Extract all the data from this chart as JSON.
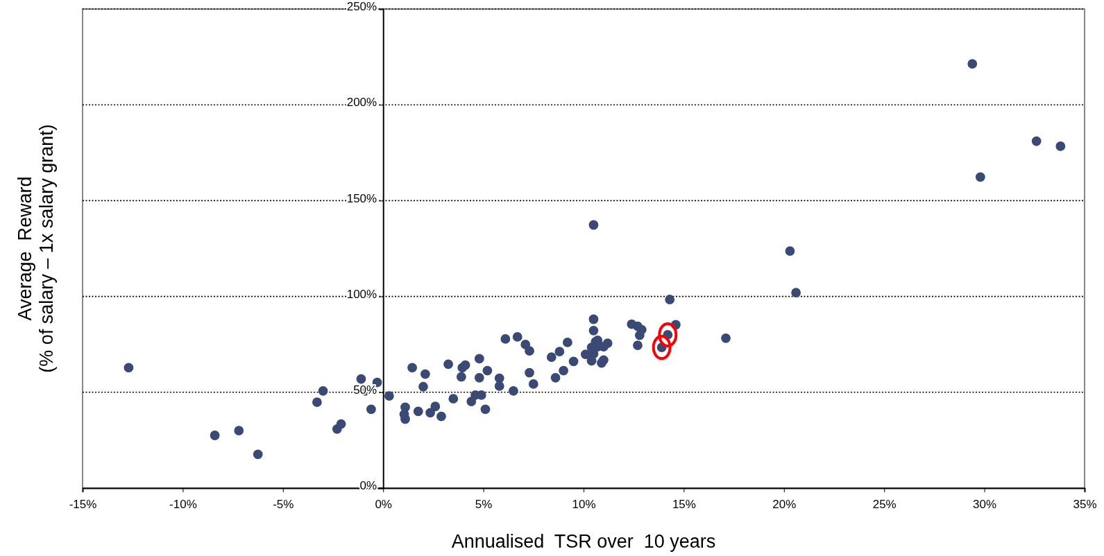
{
  "chart_data": {
    "type": "scatter",
    "xlabel": "Annualised  TSR over  10 years",
    "ylabel": "Average  Reward\n(% of salary – 1x salary grant)",
    "xlim": [
      -15,
      35
    ],
    "xticks": [
      {
        "value": -15,
        "label": "-15%"
      },
      {
        "value": -10,
        "label": "-10%"
      },
      {
        "value": -5,
        "label": "-5%"
      },
      {
        "value": 0,
        "label": "0%"
      },
      {
        "value": 5,
        "label": "5%"
      },
      {
        "value": 10,
        "label": "10%"
      },
      {
        "value": 15,
        "label": "15%"
      },
      {
        "value": 20,
        "label": "20%"
      },
      {
        "value": 25,
        "label": "25%"
      },
      {
        "value": 30,
        "label": "30%"
      },
      {
        "value": 35,
        "label": "35%"
      }
    ],
    "ylim": [
      0,
      250
    ],
    "yticks": [
      {
        "value": 0,
        "label": "0%"
      },
      {
        "value": 50,
        "label": "50%"
      },
      {
        "value": 100,
        "label": "100%"
      },
      {
        "value": 150,
        "label": "150%"
      },
      {
        "value": 200,
        "label": "200%"
      },
      {
        "value": 250,
        "label": "250%"
      }
    ],
    "grid": "y",
    "marker": "circle",
    "series": [
      {
        "color": "#3b4a74",
        "x": [
          -12.7,
          -8.4,
          -7.2,
          -6.25,
          -3.3,
          -3.0,
          -2.3,
          -2.1,
          -1.1,
          -0.9,
          -0.6,
          -0.3,
          0.3,
          1.05,
          1.1,
          1.1,
          1.45,
          1.75,
          2.0,
          2.1,
          2.35,
          2.6,
          2.9,
          3.25,
          3.5,
          3.9,
          3.95,
          4.1,
          4.4,
          4.6,
          4.8,
          4.8,
          4.9,
          5.1,
          5.2,
          5.8,
          5.8,
          6.1,
          6.5,
          6.7,
          7.1,
          7.3,
          7.3,
          7.5,
          8.4,
          8.6,
          8.8,
          9.0,
          9.2,
          9.5,
          10.1,
          10.4,
          10.5,
          10.5,
          10.5,
          10.4,
          10.6,
          10.7,
          10.5,
          10.7,
          10.9,
          11.0,
          11.0,
          11.2,
          12.4,
          12.7,
          12.9,
          12.8,
          12.7,
          14.3,
          14.6,
          17.1,
          20.3,
          20.6,
          29.4,
          29.8,
          32.6,
          33.8,
          14.2,
          13.9
        ],
        "values": [
          62.8,
          27.5,
          30,
          17.6,
          44.8,
          50.7,
          30.8,
          33.4,
          56.9,
          50.7,
          41.1,
          55.1,
          48.1,
          38.5,
          36,
          42.2,
          62.8,
          40,
          52.9,
          59.5,
          39.3,
          42.6,
          37.4,
          64.6,
          46.6,
          58,
          62.8,
          64.2,
          45.2,
          48.5,
          57.6,
          67.5,
          48.5,
          41.1,
          61.3,
          57.3,
          53.2,
          77.8,
          50.7,
          78.9,
          74.9,
          71.6,
          60.2,
          54.3,
          68.3,
          57.6,
          71.2,
          61.3,
          76,
          66.1,
          69.8,
          73.4,
          88.1,
          82.2,
          137.3,
          66.4,
          76.4,
          77.1,
          70.1,
          73.8,
          65.3,
          66.8,
          73.8,
          75.6,
          85.5,
          84.4,
          82.6,
          79.7,
          74.5,
          98.4,
          85.2,
          78.2,
          123.7,
          102,
          221.4,
          162.3,
          181,
          178.4,
          80,
          73.4
        ]
      }
    ]
  }
}
